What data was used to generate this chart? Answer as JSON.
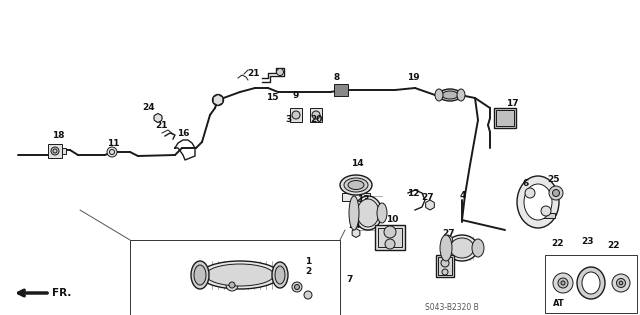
{
  "bg_color": "#ffffff",
  "line_color": "#1a1a1a",
  "label_color": "#111111",
  "watermark": "S043-B2320 B",
  "fr_label": "FR.",
  "figsize": [
    6.4,
    3.15
  ],
  "dpi": 100
}
